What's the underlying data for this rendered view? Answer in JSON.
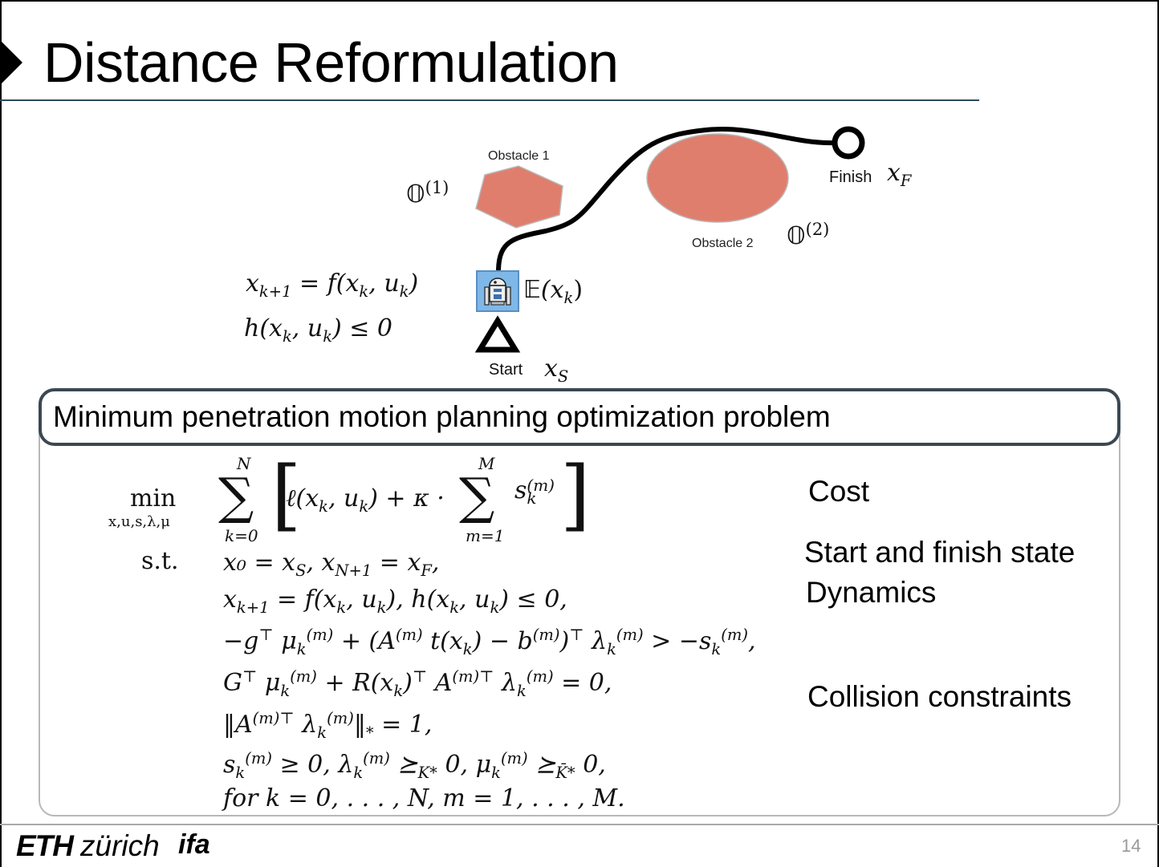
{
  "slide": {
    "title": "Distance Reformulation",
    "page_number": "14"
  },
  "diagram": {
    "obstacle1_label": "Obstacle 1",
    "obstacle2_label": "Obstacle 2",
    "obstacle1_symbol": "𝕆",
    "obstacle1_index": "(1)",
    "obstacle2_symbol": "𝕆",
    "obstacle2_index": "(2)",
    "finish_label": "Finish",
    "finish_symbol": "x",
    "finish_sub": "F",
    "start_label": "Start",
    "start_symbol": "x",
    "start_sub": "S",
    "ego_symbol": "𝔼",
    "ego_arg": "(x",
    "ego_arg_sub": "k",
    "ego_close": ")",
    "dyn_lhs": "x",
    "dyn_lhs_sub": "k+1",
    "dyn_rhs": " = f(x",
    "dyn_rhs_sub1": "k",
    "dyn_rhs_mid": ", u",
    "dyn_rhs_sub2": "k",
    "dyn_rhs_end": ")",
    "con_text": "h(x",
    "con_sub1": "k",
    "con_mid": ", u",
    "con_sub2": "k",
    "con_end": ") ≤ 0",
    "obstacle_color": "#e07e6e",
    "robot_bg": "#7fb8e8"
  },
  "problem": {
    "box_title": "Minimum penetration motion planning optimization problem",
    "min": "min",
    "min_vars": "x,u,s,λ,μ",
    "sum_top": "N",
    "sum_bottom": "k=0",
    "inner_sum_top": "M",
    "inner_sum_bottom": "m=1",
    "cost_left": "ℓ(x",
    "cost_sub1": "k",
    "cost_mid": ", u",
    "cost_sub2": "k",
    "cost_right": ") + κ ·",
    "cost_s": "s",
    "cost_s_sup": "(m)",
    "cost_s_sub": "k",
    "st": "s.t.",
    "c1": "x₀ = x_S,  x_{N+1} = x_F,",
    "c2": "x_{k+1} = f(x_k, u_k),  h(x_k, u_k) ≤ 0,",
    "c3": "−g^⊤ μ_k^{(m)} + (A^{(m)} t(x_k) − b^{(m)})^⊤ λ_k^{(m)} > −s_k^{(m)},",
    "c4": "G^⊤ μ_k^{(m)} + R(x_k)^⊤ A^{(m)⊤} λ_k^{(m)} = 0,",
    "c5": "‖A^{(m)⊤} λ_k^{(m)}‖_* = 1,",
    "c6": "s_k^{(m)} ≥ 0,  λ_k^{(m)} ⪰_{K*} 0,  μ_k^{(m)} ⪰_{K̄*} 0,",
    "c7": "for k = 0, . . . , N,  m = 1, . . . , M."
  },
  "labels": {
    "cost": "Cost",
    "start_finish": "Start and finish state",
    "dynamics": "Dynamics",
    "collision": "Collision constraints"
  },
  "footer": {
    "eth": "ETH",
    "zurich": "zürich",
    "ifa": "ifa"
  }
}
